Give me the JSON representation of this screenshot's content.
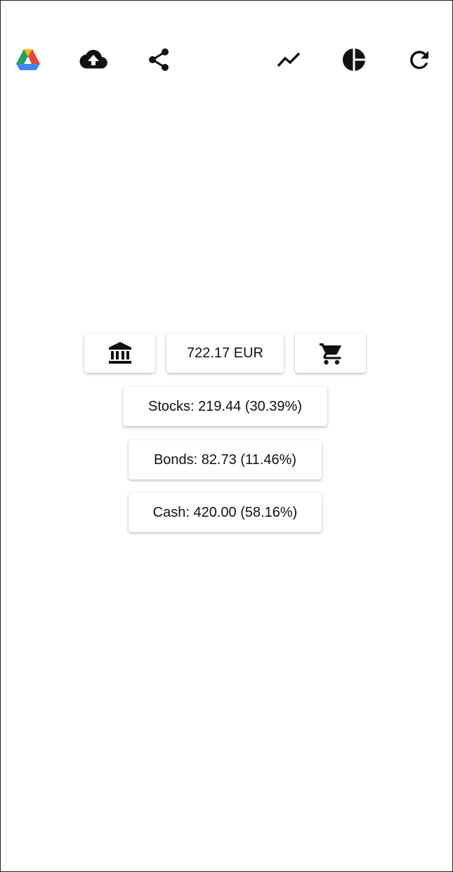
{
  "toolbar": {
    "left_icons": [
      "google-drive-icon",
      "cloud-upload-icon",
      "share-icon"
    ],
    "right_icons": [
      "trending-icon",
      "pie-chart-icon",
      "refresh-icon"
    ]
  },
  "summary": {
    "bank_icon": "bank-icon",
    "total_label": "722.17 EUR",
    "cart_icon": "cart-icon"
  },
  "allocations": [
    {
      "label": "Stocks: 219.44 (30.39%)"
    },
    {
      "label": "Bonds: 82.73 (11.46%)"
    },
    {
      "label": "Cash: 420.00 (58.16%)"
    }
  ],
  "colors": {
    "drive_green": "#1EA362",
    "drive_blue": "#4285F4",
    "drive_yellow": "#FFBA00",
    "drive_red": "#EA4335",
    "icon": "#111111",
    "background": "#FFFFFF"
  }
}
